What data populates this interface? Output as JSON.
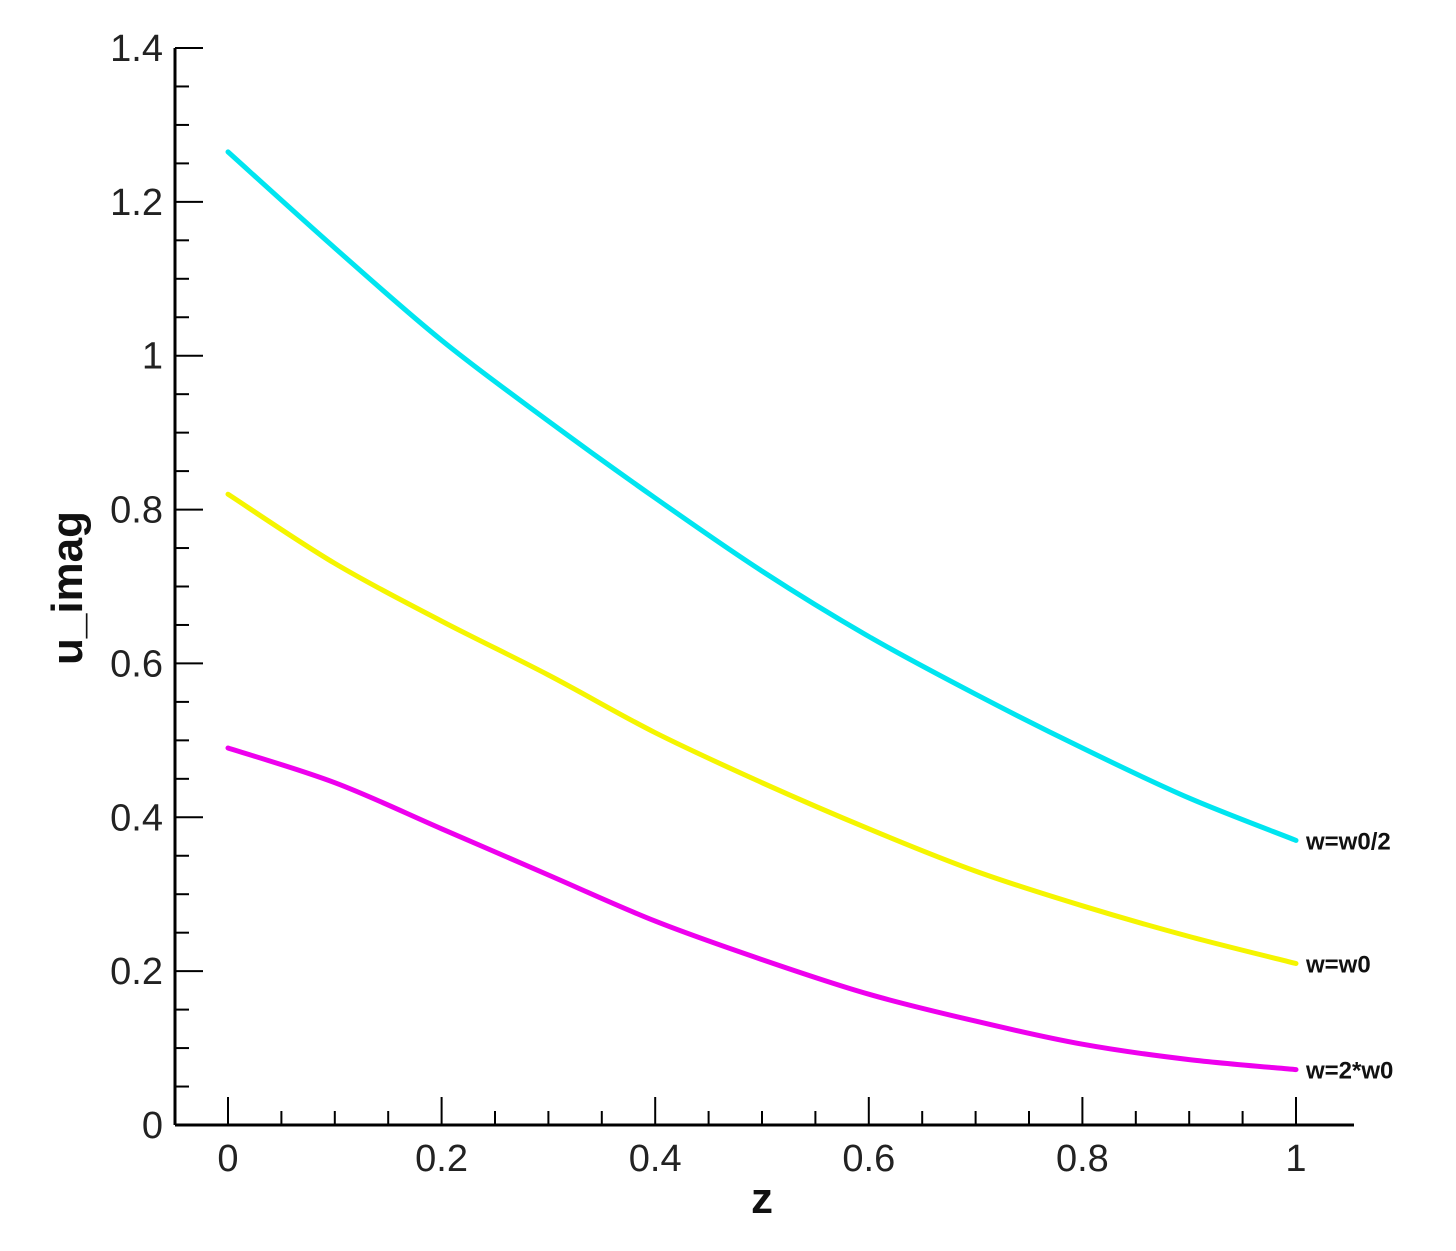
{
  "chart_data": {
    "type": "line",
    "title": "",
    "xlabel": "z",
    "ylabel": "u_imag",
    "xlim": [
      -0.05,
      1.05
    ],
    "ylim": [
      0,
      1.4
    ],
    "x_ticks": [
      "0",
      "0.2",
      "0.4",
      "0.6",
      "0.8",
      "1"
    ],
    "y_ticks": [
      "0",
      "0.2",
      "0.4",
      "0.6",
      "0.8",
      "1",
      "1.2",
      "1.4"
    ],
    "grid": false,
    "legend": "inline labels at right end of lines",
    "x": [
      0,
      0.1,
      0.2,
      0.3,
      0.4,
      0.5,
      0.6,
      0.7,
      0.8,
      0.9,
      1.0
    ],
    "series": [
      {
        "name": "w=w0/2",
        "color": "#00e5f0",
        "values": [
          1.265,
          1.14,
          1.02,
          0.915,
          0.815,
          0.72,
          0.635,
          0.56,
          0.49,
          0.425,
          0.37
        ]
      },
      {
        "name": "w=w0",
        "color": "#f5f500",
        "values": [
          0.82,
          0.73,
          0.655,
          0.585,
          0.51,
          0.445,
          0.385,
          0.33,
          0.285,
          0.245,
          0.21
        ]
      },
      {
        "name": "w=2*w0",
        "color": "#ee00ee",
        "values": [
          0.49,
          0.445,
          0.385,
          0.325,
          0.265,
          0.215,
          0.17,
          0.135,
          0.105,
          0.085,
          0.072
        ]
      }
    ]
  }
}
